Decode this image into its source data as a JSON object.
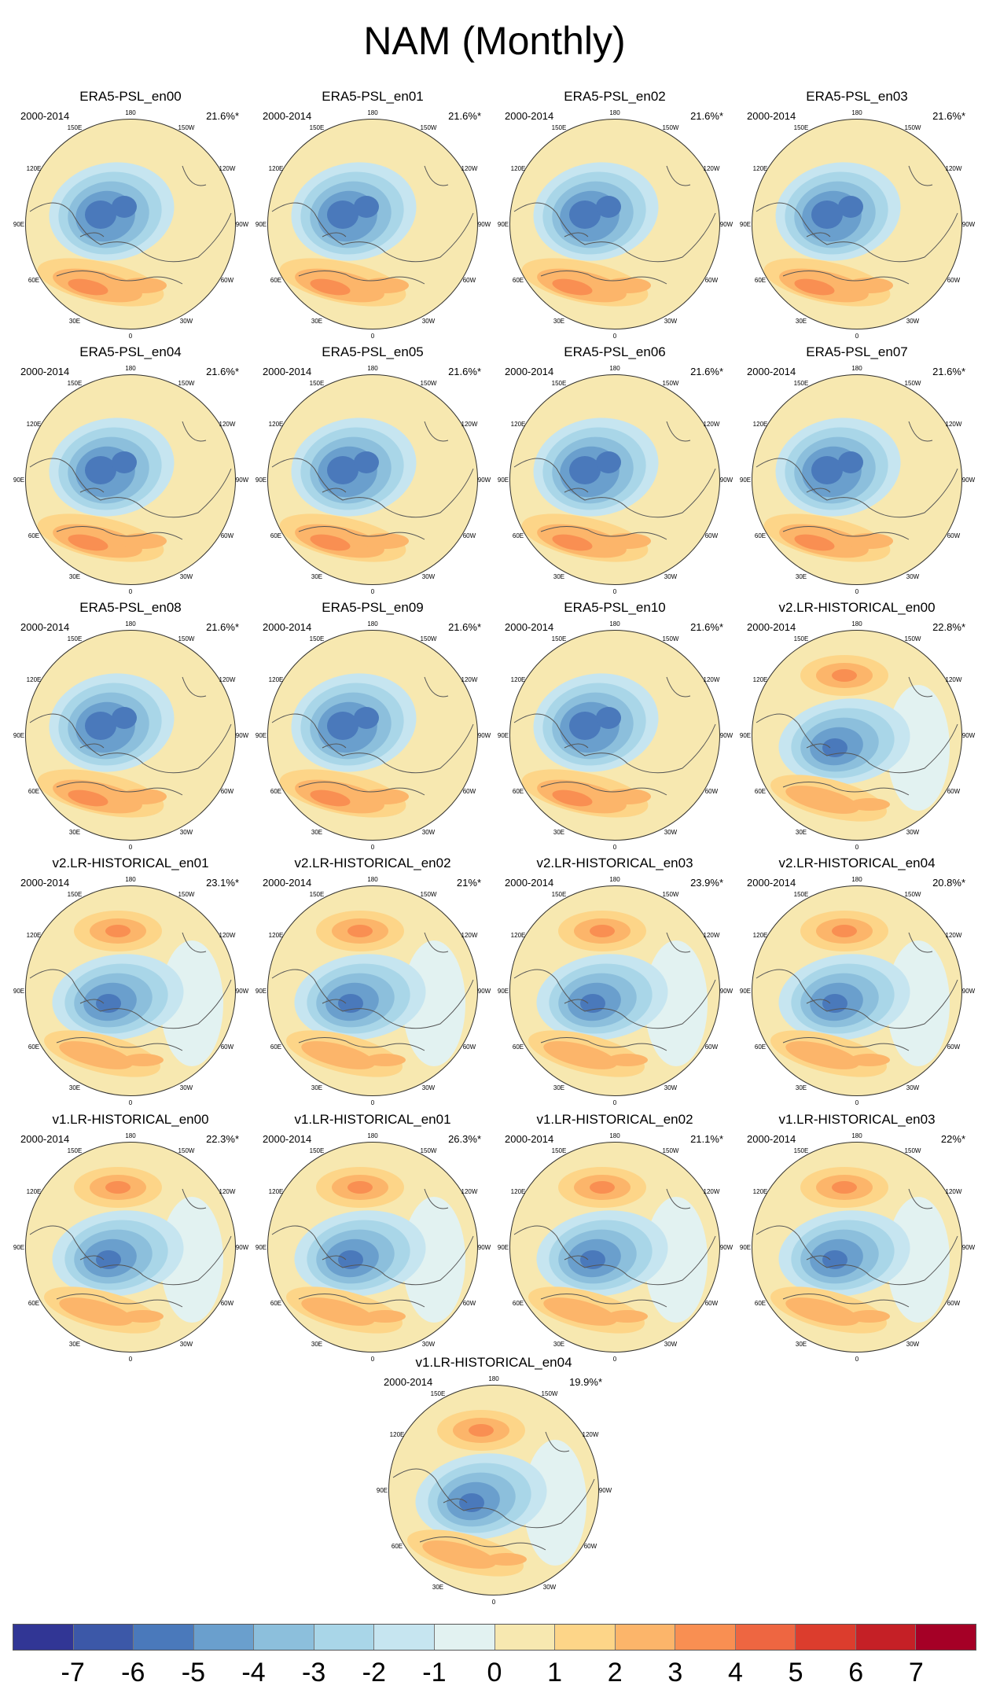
{
  "title": "NAM (Monthly)",
  "period": "2000-2014",
  "map_labels": [
    "180",
    "150E",
    "120E",
    "90E",
    "60E",
    "30E",
    "0",
    "30W",
    "60W",
    "90W",
    "120W",
    "150W"
  ],
  "panels": [
    {
      "name": "ERA5-PSL_en00",
      "pct": "21.6%*",
      "pattern": "era5"
    },
    {
      "name": "ERA5-PSL_en01",
      "pct": "21.6%*",
      "pattern": "era5"
    },
    {
      "name": "ERA5-PSL_en02",
      "pct": "21.6%*",
      "pattern": "era5"
    },
    {
      "name": "ERA5-PSL_en03",
      "pct": "21.6%*",
      "pattern": "era5"
    },
    {
      "name": "ERA5-PSL_en04",
      "pct": "21.6%*",
      "pattern": "era5"
    },
    {
      "name": "ERA5-PSL_en05",
      "pct": "21.6%*",
      "pattern": "era5"
    },
    {
      "name": "ERA5-PSL_en06",
      "pct": "21.6%*",
      "pattern": "era5"
    },
    {
      "name": "ERA5-PSL_en07",
      "pct": "21.6%*",
      "pattern": "era5"
    },
    {
      "name": "ERA5-PSL_en08",
      "pct": "21.6%*",
      "pattern": "era5"
    },
    {
      "name": "ERA5-PSL_en09",
      "pct": "21.6%*",
      "pattern": "era5"
    },
    {
      "name": "ERA5-PSL_en10",
      "pct": "21.6%*",
      "pattern": "era5"
    },
    {
      "name": "v2.LR-HISTORICAL_en00",
      "pct": "22.8%*",
      "pattern": "model"
    },
    {
      "name": "v2.LR-HISTORICAL_en01",
      "pct": "23.1%*",
      "pattern": "model"
    },
    {
      "name": "v2.LR-HISTORICAL_en02",
      "pct": "21%*",
      "pattern": "model"
    },
    {
      "name": "v2.LR-HISTORICAL_en03",
      "pct": "23.9%*",
      "pattern": "model"
    },
    {
      "name": "v2.LR-HISTORICAL_en04",
      "pct": "20.8%*",
      "pattern": "model"
    },
    {
      "name": "v1.LR-HISTORICAL_en00",
      "pct": "22.3%*",
      "pattern": "model"
    },
    {
      "name": "v1.LR-HISTORICAL_en01",
      "pct": "26.3%*",
      "pattern": "model"
    },
    {
      "name": "v1.LR-HISTORICAL_en02",
      "pct": "21.1%*",
      "pattern": "model"
    },
    {
      "name": "v1.LR-HISTORICAL_en03",
      "pct": "22%*",
      "pattern": "model"
    },
    {
      "name": "v1.LR-HISTORICAL_en04",
      "pct": "19.9%*",
      "pattern": "model"
    }
  ],
  "colorbar": {
    "colors": [
      "#313695",
      "#3c58a8",
      "#4a79bb",
      "#6a9fcd",
      "#8cbfdc",
      "#a9d6e8",
      "#c6e5f0",
      "#e2f2f1",
      "#f7e8b0",
      "#fdd588",
      "#fcb56a",
      "#f98f52",
      "#ee6641",
      "#dc3d2d",
      "#c52026",
      "#a50026"
    ],
    "tick_labels": [
      "-7",
      "-6",
      "-5",
      "-4",
      "-3",
      "-2",
      "-1",
      "0",
      "1",
      "2",
      "3",
      "4",
      "5",
      "6",
      "7"
    ]
  }
}
